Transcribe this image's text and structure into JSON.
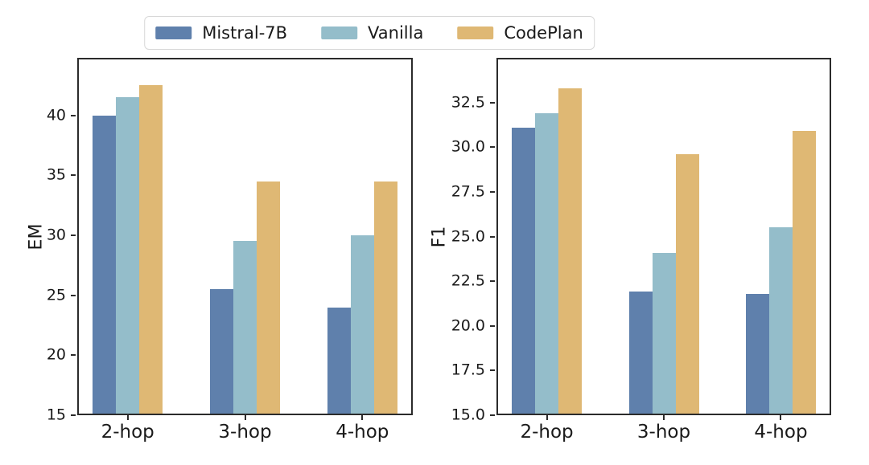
{
  "figure": {
    "background": "#ffffff"
  },
  "legend": {
    "border_color": "#d8d8d8",
    "items": [
      {
        "label": "Mistral-7B",
        "color": "#5f80ac"
      },
      {
        "label": "Vanilla",
        "color": "#94bdca"
      },
      {
        "label": "CodePlan",
        "color": "#dfb874"
      }
    ]
  },
  "chart_data": [
    {
      "type": "bar",
      "ylabel": "EM",
      "xlabel": "",
      "categories": [
        "2-hop",
        "3-hop",
        "4-hop"
      ],
      "series": [
        {
          "name": "Mistral-7B",
          "color": "#5f80ac",
          "values": [
            40.0,
            25.5,
            24.0
          ]
        },
        {
          "name": "Vanilla",
          "color": "#94bdca",
          "values": [
            41.5,
            29.5,
            30.0
          ]
        },
        {
          "name": "CodePlan",
          "color": "#dfb874",
          "values": [
            42.5,
            34.5,
            34.5
          ]
        }
      ],
      "ylim": [
        15,
        44.8
      ],
      "ytick_values": [
        15,
        20,
        25,
        30,
        35,
        40
      ],
      "ytick_labels": [
        "15",
        "20",
        "25",
        "30",
        "35",
        "40"
      ],
      "grid": false,
      "legend_position": "figure-top-center"
    },
    {
      "type": "bar",
      "ylabel": "F1",
      "xlabel": "",
      "categories": [
        "2-hop",
        "3-hop",
        "4-hop"
      ],
      "series": [
        {
          "name": "Mistral-7B",
          "color": "#5f80ac",
          "values": [
            31.1,
            21.9,
            21.8
          ]
        },
        {
          "name": "Vanilla",
          "color": "#94bdca",
          "values": [
            31.9,
            24.1,
            25.5
          ]
        },
        {
          "name": "CodePlan",
          "color": "#dfb874",
          "values": [
            33.3,
            29.6,
            30.9
          ]
        }
      ],
      "ylim": [
        15,
        35.0
      ],
      "ytick_values": [
        15.0,
        17.5,
        20.0,
        22.5,
        25.0,
        27.5,
        30.0,
        32.5
      ],
      "ytick_labels": [
        "15.0",
        "17.5",
        "20.0",
        "22.5",
        "25.0",
        "27.5",
        "30.0",
        "32.5"
      ],
      "grid": false
    }
  ]
}
